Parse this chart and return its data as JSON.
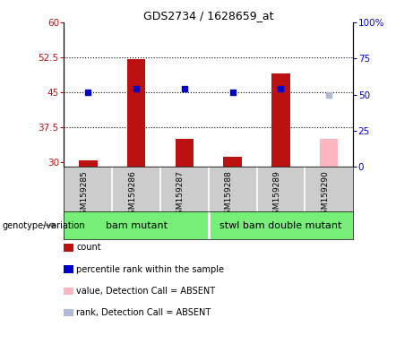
{
  "title": "GDS2734 / 1628659_at",
  "samples": [
    "GSM159285",
    "GSM159286",
    "GSM159287",
    "GSM159288",
    "GSM159289",
    "GSM159290"
  ],
  "count_values": [
    30.4,
    52.2,
    35.0,
    31.2,
    49.0,
    null
  ],
  "count_absent_values": [
    null,
    null,
    null,
    null,
    null,
    35.0
  ],
  "percentile_values": [
    45.0,
    45.7,
    45.7,
    45.0,
    45.7,
    null
  ],
  "percentile_absent_values": [
    null,
    null,
    null,
    null,
    null,
    44.5
  ],
  "ylim_left": [
    29,
    60
  ],
  "ylim_right": [
    0,
    100
  ],
  "yticks_left": [
    30,
    37.5,
    45,
    52.5,
    60
  ],
  "yticks_right": [
    0,
    25,
    50,
    75,
    100
  ],
  "ytick_labels_left": [
    "30",
    "37.5",
    "45",
    "52.5",
    "60"
  ],
  "ytick_labels_right": [
    "0",
    "25",
    "50",
    "75",
    "100%"
  ],
  "bar_color_present": "#bb1111",
  "bar_color_absent": "#ffb6c1",
  "dot_color_present": "#0000cc",
  "dot_color_absent": "#b0b8d8",
  "bar_width": 0.38,
  "dot_size": 25,
  "bg_sample_area": "#cccccc",
  "bg_group_area": "#77ee77",
  "group1_label": "bam mutant",
  "group2_label": "stwl bam double mutant",
  "group_label_text": "genotype/variation",
  "legend_items": [
    {
      "label": "count",
      "color": "#bb1111"
    },
    {
      "label": "percentile rank within the sample",
      "color": "#0000cc"
    },
    {
      "label": "value, Detection Call = ABSENT",
      "color": "#ffb6c1"
    },
    {
      "label": "rank, Detection Call = ABSENT",
      "color": "#b0b8d8"
    }
  ]
}
